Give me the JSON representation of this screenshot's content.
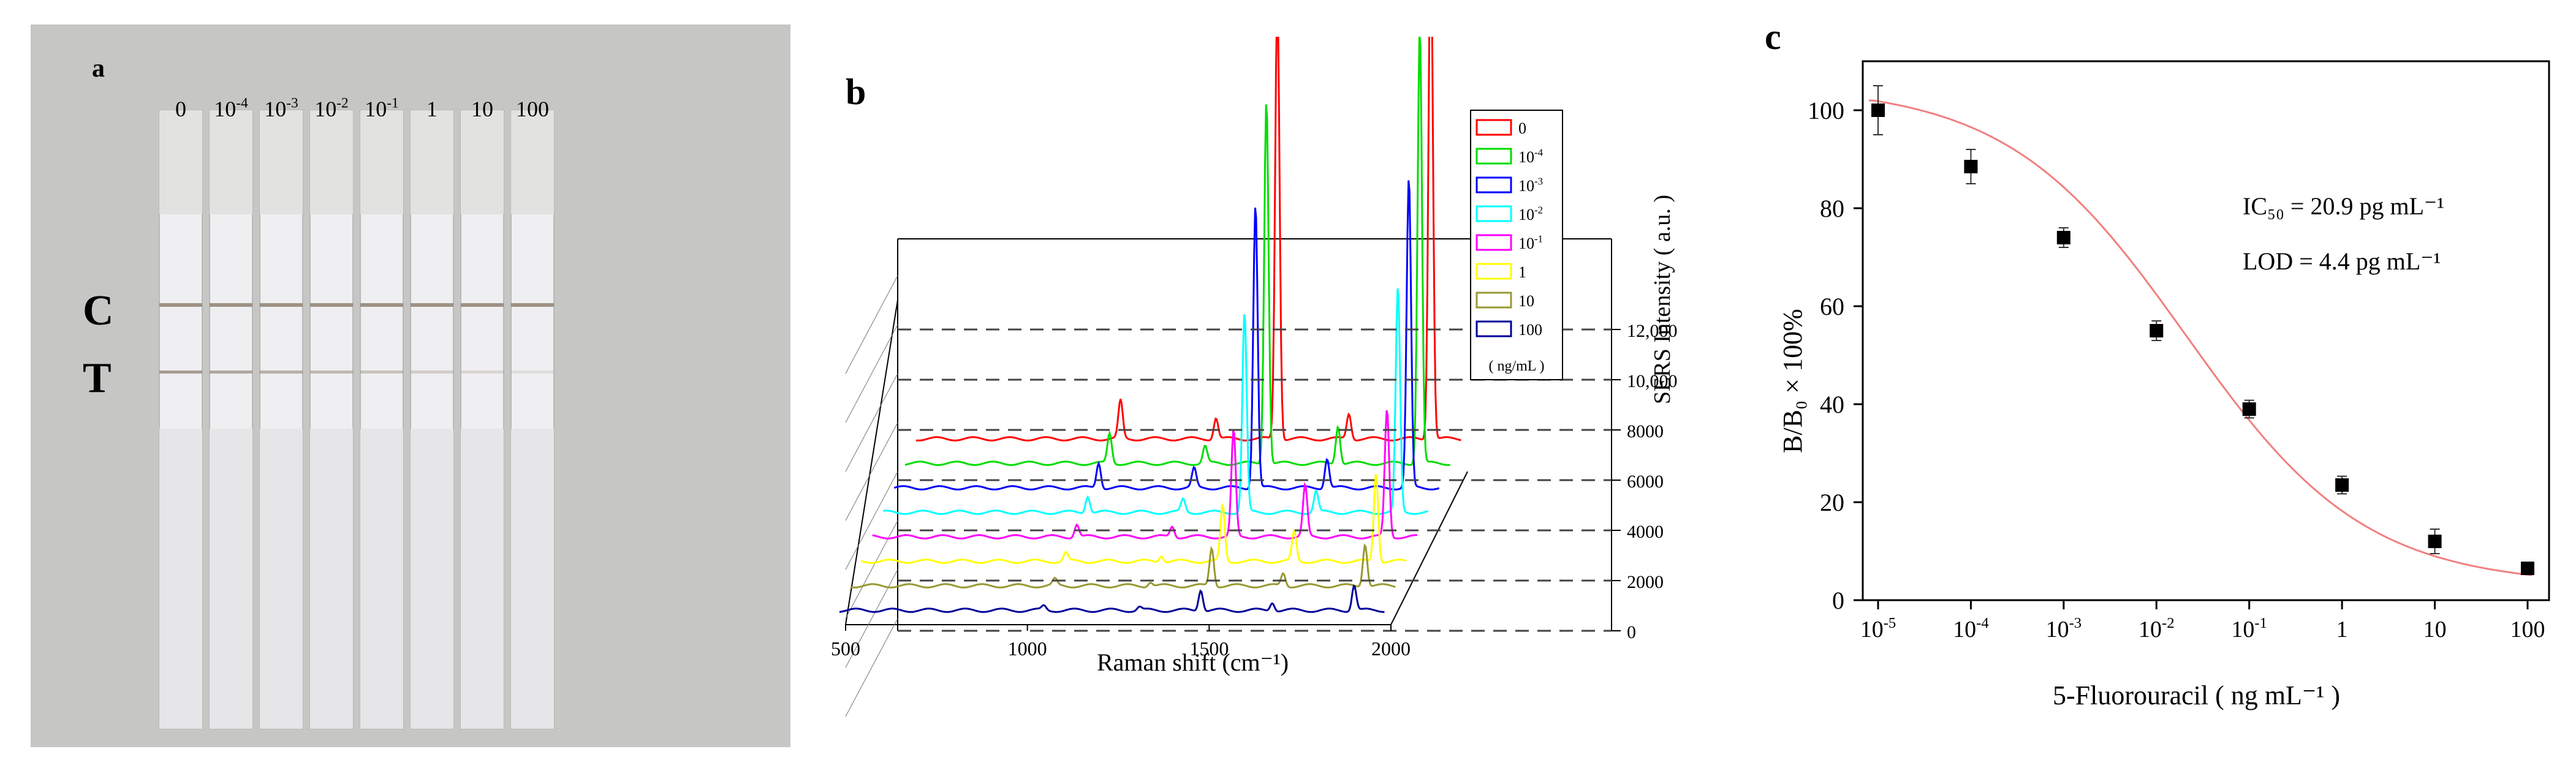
{
  "panels": {
    "a": {
      "label": "a",
      "concentration_labels": [
        "0",
        "10^-4",
        "10^-3",
        "10^-2",
        "10^-1",
        "1",
        "10",
        "100"
      ],
      "line_labels": {
        "control": "C",
        "test": "T"
      },
      "colors": {
        "background": "#c8c8c6",
        "strip": "#efeff1",
        "line": "#8a7a6a"
      }
    },
    "b": {
      "label": "b",
      "xlabel": "Raman shift (cm⁻¹)",
      "ylabel": "SERS Intensity ( a.u. )",
      "x_ticks": [
        "500",
        "1000",
        "1500",
        "2000"
      ],
      "y_ticks": [
        "0",
        "2000",
        "4000",
        "6000",
        "8000",
        "10,000",
        "12,000"
      ],
      "legend_entries": [
        "0",
        "10^-4",
        "10^-3",
        "10^-2",
        "10^-1",
        "1",
        "10",
        "100"
      ],
      "legend_unit": "( ng/mL )",
      "series_colors": [
        "#ff0000",
        "#00dd00",
        "#0000ff",
        "#00ffff",
        "#ff00ff",
        "#ffff00",
        "#999933",
        "#000099"
      ]
    },
    "c": {
      "label": "c",
      "xlabel": "5-Fluorouracil ( ng mL⁻¹ )",
      "ylabel": "B/B₀ × 100%",
      "annotations": [
        "IC₅₀ = 20.9 pg mL⁻¹",
        "LOD = 4.4 pg mL⁻¹"
      ]
    }
  },
  "chart_data": [
    {
      "type": "line",
      "title": "",
      "xlabel": "Raman shift (cm⁻¹)",
      "ylabel": "SERS Intensity ( a.u. )",
      "xlim": [
        500,
        2000
      ],
      "ylim": [
        0,
        12000
      ],
      "series": [
        {
          "name": "0",
          "peaks": [
            [
              1100,
              900
            ],
            [
              1380,
              500
            ],
            [
              1560,
              10500
            ],
            [
              1770,
              600
            ],
            [
              2010,
              12000
            ]
          ]
        },
        {
          "name": "10^-4",
          "peaks": [
            [
              1100,
              700
            ],
            [
              1380,
              400
            ],
            [
              1560,
              8600
            ],
            [
              1770,
              900
            ],
            [
              2010,
              10300
            ]
          ]
        },
        {
          "name": "10^-3",
          "peaks": [
            [
              1100,
              600
            ],
            [
              1380,
              450
            ],
            [
              1560,
              6700
            ],
            [
              1770,
              700
            ],
            [
              2010,
              7300
            ]
          ]
        },
        {
          "name": "10^-2",
          "peaks": [
            [
              1100,
              400
            ],
            [
              1380,
              300
            ],
            [
              1560,
              4700
            ],
            [
              1770,
              500
            ],
            [
              2010,
              5300
            ]
          ]
        },
        {
          "name": "10^-1",
          "peaks": [
            [
              1100,
              300
            ],
            [
              1380,
              250
            ],
            [
              1560,
              2500
            ],
            [
              1770,
              1200
            ],
            [
              2010,
              3000
            ]
          ]
        },
        {
          "name": "1",
          "peaks": [
            [
              1100,
              200
            ],
            [
              1380,
              150
            ],
            [
              1560,
              1300
            ],
            [
              1770,
              700
            ],
            [
              2010,
              2100
            ]
          ]
        },
        {
          "name": "10",
          "peaks": [
            [
              1100,
              150
            ],
            [
              1380,
              100
            ],
            [
              1560,
              900
            ],
            [
              1770,
              300
            ],
            [
              2010,
              1000
            ]
          ]
        },
        {
          "name": "100",
          "peaks": [
            [
              1100,
              100
            ],
            [
              1380,
              80
            ],
            [
              1560,
              500
            ],
            [
              1770,
              200
            ],
            [
              2010,
              600
            ]
          ]
        }
      ]
    },
    {
      "type": "scatter",
      "title": "",
      "xlabel": "5-Fluorouracil ( ng mL⁻¹ )",
      "ylabel": "B/B₀ × 100%",
      "x_scale": "log",
      "x_ticks": [
        "10^-5",
        "10^-4",
        "10^-3",
        "10^-2",
        "10^-1",
        "1",
        "10",
        "100"
      ],
      "y_ticks": [
        "0",
        "20",
        "40",
        "60",
        "80",
        "100"
      ],
      "ylim": [
        0,
        110
      ],
      "points": [
        {
          "x": 1e-05,
          "y": 100,
          "err": 5
        },
        {
          "x": 0.0001,
          "y": 88.5,
          "err": 3.5
        },
        {
          "x": 0.001,
          "y": 74,
          "err": 2
        },
        {
          "x": 0.01,
          "y": 55,
          "err": 2
        },
        {
          "x": 0.1,
          "y": 39,
          "err": 1.8
        },
        {
          "x": 1,
          "y": 23.5,
          "err": 1.8
        },
        {
          "x": 10,
          "y": 12,
          "err": 2.5
        },
        {
          "x": 100,
          "y": 6.5,
          "err": 0.8
        }
      ],
      "fit_color": "#f08080"
    }
  ]
}
